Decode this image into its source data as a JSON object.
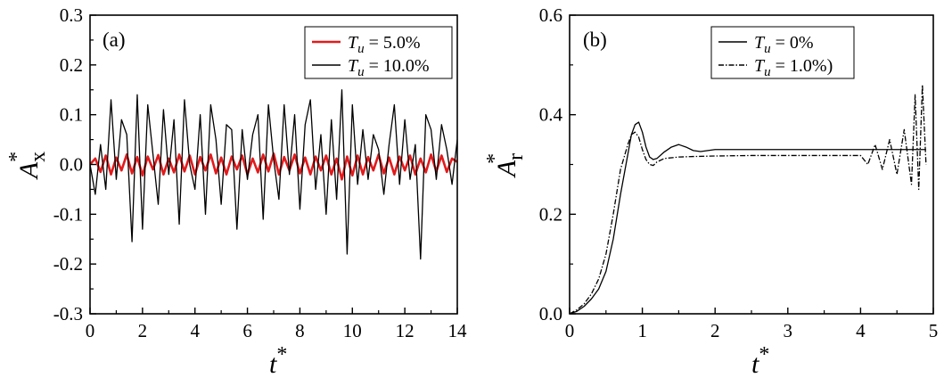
{
  "chart_data": [
    {
      "panel_label": "(a)",
      "type": "line",
      "xlabel": {
        "symbol": "t",
        "sup": "*"
      },
      "ylabel": {
        "symbol": "A",
        "sub": "x",
        "sup": "*"
      },
      "xlim": [
        0,
        14
      ],
      "ylim": [
        -0.3,
        0.3
      ],
      "xticks": [
        0,
        2,
        4,
        6,
        8,
        10,
        12,
        14
      ],
      "yticks": [
        -0.3,
        -0.2,
        -0.1,
        0.0,
        0.1,
        0.2,
        0.3
      ],
      "xtick_labels": [
        "0",
        "2",
        "4",
        "6",
        "8",
        "10",
        "12",
        "14"
      ],
      "ytick_labels": [
        "-0.3",
        "-0.2",
        "-0.1",
        "0.0",
        "0.1",
        "0.2",
        "0.3"
      ],
      "grid": false,
      "legend_position": "top-right",
      "series": [
        {
          "legend": {
            "symbol": "T",
            "sub": "u",
            "value": " = 5.0%"
          },
          "color": "#e31a1c",
          "style": "solid",
          "x": [
            0,
            0.2,
            0.4,
            0.6,
            0.8,
            1.0,
            1.2,
            1.4,
            1.6,
            1.8,
            2.0,
            2.2,
            2.4,
            2.6,
            2.8,
            3.0,
            3.2,
            3.4,
            3.6,
            3.8,
            4.0,
            4.2,
            4.4,
            4.6,
            4.8,
            5.0,
            5.2,
            5.4,
            5.6,
            5.8,
            6.0,
            6.2,
            6.4,
            6.6,
            6.8,
            7.0,
            7.2,
            7.4,
            7.6,
            7.8,
            8.0,
            8.2,
            8.4,
            8.6,
            8.8,
            9.0,
            9.2,
            9.4,
            9.6,
            9.8,
            10.0,
            10.2,
            10.4,
            10.6,
            10.8,
            11.0,
            11.2,
            11.4,
            11.6,
            11.8,
            12.0,
            12.2,
            12.4,
            12.6,
            12.8,
            13.0,
            13.2,
            13.4,
            13.6,
            13.8,
            14.0
          ],
          "y": [
            0.0,
            0.012,
            -0.015,
            0.018,
            -0.02,
            0.014,
            -0.012,
            0.02,
            -0.018,
            0.015,
            -0.022,
            0.016,
            -0.01,
            0.019,
            -0.02,
            0.012,
            -0.016,
            0.02,
            -0.014,
            0.018,
            -0.02,
            0.015,
            -0.012,
            0.02,
            -0.018,
            0.014,
            -0.02,
            0.016,
            -0.01,
            0.018,
            -0.02,
            0.012,
            -0.016,
            0.02,
            -0.014,
            0.022,
            -0.02,
            0.015,
            -0.012,
            0.02,
            -0.018,
            0.014,
            -0.02,
            0.016,
            -0.012,
            0.018,
            -0.02,
            0.012,
            -0.03,
            0.016,
            -0.022,
            0.018,
            -0.02,
            0.015,
            -0.012,
            0.02,
            -0.018,
            0.014,
            -0.02,
            0.016,
            -0.012,
            0.018,
            -0.02,
            0.012,
            -0.016,
            0.02,
            -0.014,
            0.018,
            -0.015,
            0.012,
            0.005
          ]
        },
        {
          "legend": {
            "symbol": "T",
            "sub": "u",
            "value": " = 10.0%"
          },
          "color": "#000000",
          "style": "solid",
          "x": [
            0,
            0.2,
            0.4,
            0.6,
            0.8,
            1.0,
            1.2,
            1.4,
            1.6,
            1.8,
            2.0,
            2.2,
            2.4,
            2.6,
            2.8,
            3.0,
            3.2,
            3.4,
            3.6,
            3.8,
            4.0,
            4.2,
            4.4,
            4.6,
            4.8,
            5.0,
            5.2,
            5.4,
            5.6,
            5.8,
            6.0,
            6.2,
            6.4,
            6.6,
            6.8,
            7.0,
            7.2,
            7.4,
            7.6,
            7.8,
            8.0,
            8.2,
            8.4,
            8.6,
            8.8,
            9.0,
            9.2,
            9.4,
            9.6,
            9.8,
            10.0,
            10.2,
            10.4,
            10.6,
            10.8,
            11.0,
            11.2,
            11.4,
            11.6,
            11.8,
            12.0,
            12.2,
            12.4,
            12.6,
            12.8,
            13.0,
            13.2,
            13.4,
            13.6,
            13.8,
            14.0
          ],
          "y": [
            0.0,
            -0.06,
            0.04,
            -0.05,
            0.13,
            -0.03,
            0.09,
            0.06,
            -0.155,
            0.14,
            -0.13,
            0.12,
            0.02,
            -0.08,
            0.11,
            -0.02,
            0.09,
            -0.12,
            0.13,
            0.0,
            -0.05,
            0.1,
            -0.1,
            0.12,
            0.05,
            -0.08,
            0.08,
            0.07,
            -0.13,
            0.07,
            -0.03,
            0.06,
            0.1,
            -0.11,
            0.12,
            0.01,
            -0.07,
            0.12,
            -0.02,
            0.1,
            -0.09,
            0.08,
            0.13,
            -0.05,
            0.06,
            -0.1,
            0.09,
            -0.07,
            0.15,
            -0.18,
            0.12,
            -0.04,
            0.07,
            -0.03,
            0.06,
            0.03,
            -0.06,
            0.04,
            0.12,
            -0.04,
            0.09,
            -0.03,
            0.04,
            -0.19,
            0.1,
            0.07,
            -0.03,
            0.08,
            0.03,
            -0.04,
            0.05
          ]
        }
      ]
    },
    {
      "panel_label": "(b)",
      "type": "line",
      "xlabel": {
        "symbol": "t",
        "sup": "*"
      },
      "ylabel": {
        "symbol": "A",
        "sub": "r",
        "sup": "*"
      },
      "xlim": [
        0,
        5
      ],
      "ylim": [
        0.0,
        0.6
      ],
      "xticks": [
        0,
        1,
        2,
        3,
        4,
        5
      ],
      "yticks": [
        0.0,
        0.2,
        0.4,
        0.6
      ],
      "xtick_labels": [
        "0",
        "1",
        "2",
        "3",
        "4",
        "5"
      ],
      "ytick_labels": [
        "0.0",
        "0.2",
        "0.4",
        "0.6"
      ],
      "grid": false,
      "legend_position": "top-right",
      "series": [
        {
          "legend": {
            "symbol": "T",
            "sub": "u",
            "value": " = 0%"
          },
          "color": "#000000",
          "style": "solid",
          "x": [
            0,
            0.1,
            0.2,
            0.3,
            0.4,
            0.5,
            0.6,
            0.7,
            0.8,
            0.85,
            0.9,
            0.95,
            1.0,
            1.05,
            1.1,
            1.15,
            1.2,
            1.3,
            1.4,
            1.5,
            1.6,
            1.7,
            1.8,
            1.9,
            2.0,
            2.5,
            3.0,
            3.5,
            4.0,
            4.5,
            4.9
          ],
          "y": [
            0.0,
            0.005,
            0.015,
            0.03,
            0.05,
            0.085,
            0.15,
            0.24,
            0.32,
            0.36,
            0.38,
            0.385,
            0.365,
            0.335,
            0.315,
            0.31,
            0.312,
            0.325,
            0.335,
            0.34,
            0.335,
            0.328,
            0.326,
            0.328,
            0.33,
            0.33,
            0.33,
            0.33,
            0.33,
            0.33,
            0.33
          ]
        },
        {
          "legend": {
            "symbol": "T",
            "sub": "u",
            "value": " = 1.0%)"
          },
          "color": "#000000",
          "style": "dashdot",
          "x": [
            0,
            0.1,
            0.2,
            0.3,
            0.4,
            0.5,
            0.6,
            0.7,
            0.8,
            0.85,
            0.9,
            0.95,
            1.0,
            1.05,
            1.1,
            1.15,
            1.2,
            1.3,
            1.5,
            1.7,
            2.0,
            2.5,
            3.0,
            3.5,
            4.0,
            4.1,
            4.2,
            4.3,
            4.4,
            4.5,
            4.6,
            4.7,
            4.75,
            4.8,
            4.85,
            4.9
          ],
          "y": [
            0.0,
            0.008,
            0.02,
            0.04,
            0.07,
            0.12,
            0.2,
            0.29,
            0.34,
            0.36,
            0.365,
            0.355,
            0.33,
            0.31,
            0.3,
            0.298,
            0.305,
            0.312,
            0.315,
            0.316,
            0.317,
            0.318,
            0.318,
            0.318,
            0.318,
            0.3,
            0.34,
            0.29,
            0.35,
            0.28,
            0.37,
            0.26,
            0.44,
            0.25,
            0.46,
            0.3
          ]
        }
      ]
    }
  ]
}
